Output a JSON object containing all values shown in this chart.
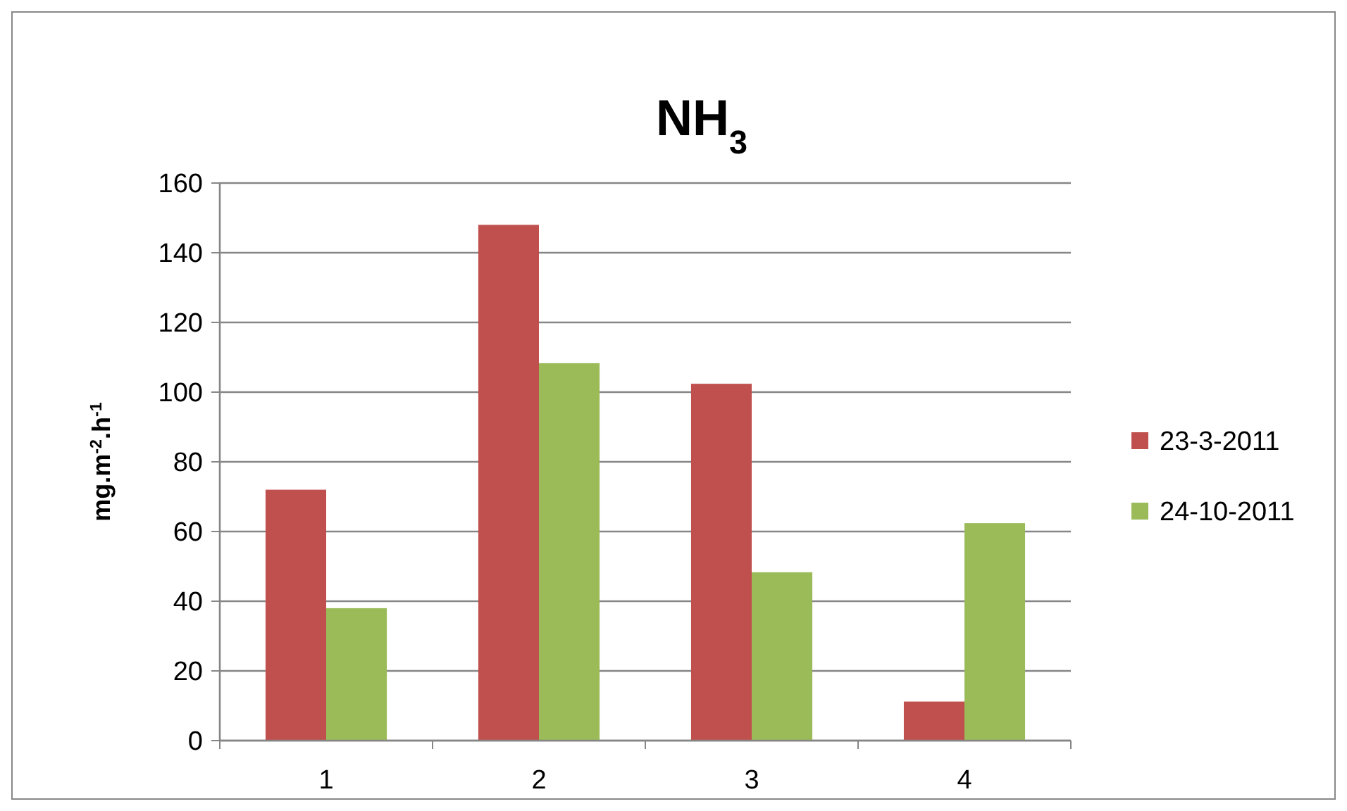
{
  "chart_data": {
    "type": "bar",
    "title": "NH$_{3}$",
    "ylabel": "mg.m$^{-2}$.h$^{-1}$",
    "categories": [
      "1",
      "2",
      "3",
      "4"
    ],
    "series": [
      {
        "name": "23-3-2011",
        "color": "#c0504d",
        "values": [
          72,
          148,
          102.4,
          11.2
        ]
      },
      {
        "name": "24-10-2011",
        "color": "#9bbb59",
        "values": [
          38,
          108.3,
          48.3,
          62.4
        ]
      }
    ],
    "ylim": [
      0,
      160
    ],
    "yticks": [
      0,
      20,
      40,
      60,
      80,
      100,
      120,
      140,
      160
    ],
    "grid": "y",
    "legend": "right"
  }
}
